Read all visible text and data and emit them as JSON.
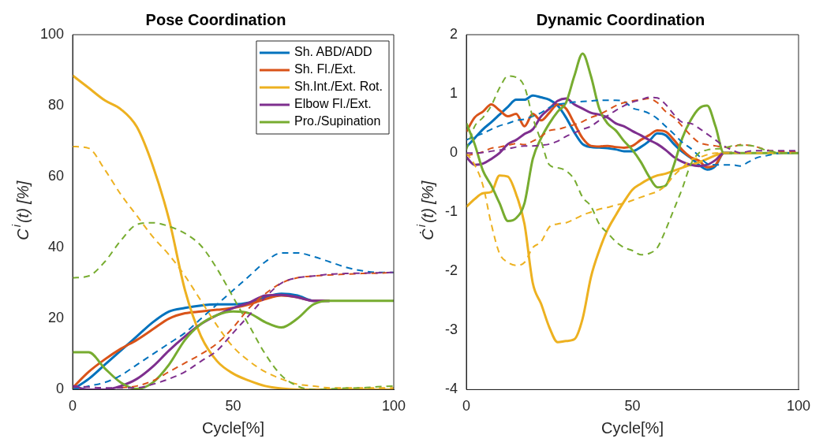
{
  "chart_data": [
    {
      "type": "line",
      "title": "Pose Coordination",
      "xlabel": "Cycle[%]",
      "ylabel": "C$^{i}$(t) [%]",
      "x": [
        0,
        5,
        10,
        15,
        20,
        25,
        30,
        35,
        40,
        45,
        50,
        55,
        60,
        65,
        70,
        75,
        80,
        85,
        90,
        95,
        100
      ],
      "xlim": [
        0,
        100
      ],
      "xticks": [
        0,
        50,
        100
      ],
      "ylim": [
        0,
        100
      ],
      "yticks": [
        0,
        20,
        40,
        60,
        80,
        100
      ],
      "grid": false,
      "legend": "top right",
      "series": [
        {
          "name": "Sh. ABD/ADD",
          "color": "#0072bd",
          "line_style": "solid",
          "values": [
            0,
            3,
            7,
            11,
            15,
            19,
            22,
            23,
            23.7,
            24,
            24,
            24.5,
            26,
            27,
            26.5,
            25,
            25,
            null,
            null,
            null,
            null
          ]
        },
        {
          "name": "Sh. Fl./Ext.",
          "color": "#d95319",
          "line_style": "solid",
          "values": [
            0.5,
            5,
            8.5,
            11.5,
            14,
            17,
            20,
            21.5,
            22,
            22.5,
            23,
            24,
            25.5,
            26.5,
            26,
            25,
            25,
            null,
            null,
            null,
            null
          ]
        },
        {
          "name": "Sh.Int./Ext. Rot.",
          "color": "#edb120",
          "line_style": "solid",
          "values": [
            88.5,
            85,
            81.5,
            79,
            74,
            63,
            48,
            28,
            15,
            8,
            4.5,
            2.5,
            1,
            0.3,
            0,
            0,
            0,
            0,
            0,
            0,
            0
          ]
        },
        {
          "name": "Elbow Fl./Ext.",
          "color": "#7e2f8e",
          "line_style": "solid",
          "values": [
            1,
            0,
            0,
            1,
            3,
            6.5,
            11,
            15,
            18.5,
            21,
            23,
            24.5,
            26.5,
            26.7,
            26,
            25,
            25,
            null,
            null,
            null,
            null
          ]
        },
        {
          "name": "Pro./Supination",
          "color": "#77ac30",
          "line_style": "solid",
          "values": [
            10.5,
            10.5,
            6,
            2,
            0.2,
            2,
            7,
            14,
            18.5,
            21,
            22,
            21.5,
            19,
            17.5,
            20,
            24,
            25,
            25,
            25,
            25,
            25
          ]
        },
        {
          "color": "#0072bd",
          "line_style": "dashed",
          "values": [
            0,
            1,
            2,
            4,
            7,
            10,
            13,
            16,
            20,
            24,
            28,
            32,
            36,
            38.5,
            38.5,
            37.5,
            36,
            34.5,
            33.5,
            33,
            33
          ]
        },
        {
          "color": "#d95319",
          "line_style": "dashed",
          "values": [
            null,
            null,
            null,
            0.5,
            1,
            2.5,
            5,
            7.5,
            10,
            13,
            17.5,
            23,
            27,
            30,
            31.5,
            32,
            32.3,
            32.5,
            32.7,
            32.8,
            33
          ]
        },
        {
          "color": "#edb120",
          "line_style": "dashed",
          "values": [
            68.5,
            68,
            62,
            55,
            49,
            43,
            38,
            32,
            25,
            18,
            12,
            8,
            5,
            3,
            1.5,
            1,
            0.5,
            0.5,
            0.5,
            0.5,
            0.5
          ]
        },
        {
          "color": "#7e2f8e",
          "line_style": "dashed",
          "values": [
            1,
            0.7,
            0.5,
            0.5,
            0.5,
            1.5,
            3,
            5,
            8,
            11,
            16,
            21,
            26,
            30,
            31.5,
            32,
            32.5,
            32.7,
            32.8,
            32.9,
            33
          ]
        },
        {
          "color": "#77ac30",
          "line_style": "dashed",
          "values": [
            31.5,
            32,
            36,
            42,
            46.5,
            47,
            46,
            44,
            40.5,
            34,
            26,
            18,
            10,
            4,
            1,
            0,
            0.2,
            0.4,
            0.5,
            0.8,
            1
          ]
        }
      ]
    },
    {
      "type": "line",
      "title": "Dynamic Coordination",
      "xlabel": "Cycle[%]",
      "ylabel": "Ċ$^{i}$(t) [%]",
      "x": [
        0,
        2.5,
        5,
        7.5,
        10,
        12.5,
        15,
        17.5,
        20,
        22.5,
        25,
        27.5,
        30,
        32.5,
        35,
        37.5,
        40,
        42.5,
        45,
        47.5,
        50,
        52.5,
        55,
        57.5,
        60,
        62.5,
        65,
        67.5,
        70,
        72.5,
        75,
        77.5,
        80,
        82.5,
        85,
        87.5,
        90,
        92.5,
        95,
        97.5,
        100
      ],
      "xlim": [
        0,
        100
      ],
      "xticks": [
        0,
        50,
        100
      ],
      "ylim": [
        -4,
        2
      ],
      "yticks": [
        -4,
        -3,
        -2,
        -1,
        0,
        1,
        2
      ],
      "grid": false,
      "series": [
        {
          "color": "#0072bd",
          "line_style": "solid",
          "values": [
            0.1,
            0.25,
            0.4,
            0.52,
            0.65,
            0.78,
            0.9,
            0.9,
            0.97,
            0.94,
            0.9,
            0.8,
            0.6,
            0.35,
            0.15,
            0.1,
            0.09,
            0.08,
            0.06,
            0.03,
            0.03,
            0.1,
            0.2,
            0.33,
            0.3,
            0.15,
            0.02,
            -0.08,
            -0.2,
            -0.28,
            -0.22,
            0,
            0,
            null,
            null,
            null,
            null,
            null,
            null,
            null,
            null
          ]
        },
        {
          "color": "#d95319",
          "line_style": "solid",
          "values": [
            0.36,
            0.6,
            0.7,
            0.82,
            0.72,
            0.62,
            0.66,
            0.45,
            0.66,
            0.55,
            0.68,
            0.82,
            0.75,
            0.5,
            0.25,
            0.12,
            0.11,
            0.12,
            0.1,
            0.09,
            0.12,
            0.22,
            0.3,
            0.38,
            0.36,
            0.22,
            0.05,
            -0.07,
            -0.13,
            -0.24,
            -0.2,
            0,
            0,
            null,
            null,
            null,
            null,
            null,
            null,
            null,
            null
          ]
        },
        {
          "color": "#edb120",
          "line_style": "solid",
          "values": [
            -0.91,
            -0.78,
            -0.68,
            -0.66,
            -0.38,
            -0.4,
            -0.7,
            -1.2,
            -2.2,
            -2.55,
            -2.95,
            -3.2,
            -3.18,
            -3.15,
            -2.8,
            -2.1,
            -1.65,
            -1.3,
            -1.05,
            -0.82,
            -0.62,
            -0.52,
            -0.44,
            -0.38,
            -0.35,
            -0.3,
            -0.25,
            -0.2,
            -0.16,
            -0.1,
            -0.04,
            0,
            0,
            null,
            null,
            null,
            null,
            null,
            null,
            null,
            null
          ]
        },
        {
          "color": "#7e2f8e",
          "line_style": "solid",
          "values": [
            -0.07,
            -0.2,
            -0.18,
            -0.1,
            0,
            0.15,
            0.22,
            0.32,
            0.4,
            0.62,
            0.75,
            0.88,
            0.92,
            0.82,
            0.75,
            0.68,
            0.65,
            0.6,
            0.5,
            0.45,
            0.37,
            0.3,
            0.22,
            0.15,
            0.05,
            -0.07,
            -0.15,
            -0.2,
            -0.22,
            -0.2,
            -0.12,
            0,
            0,
            null,
            null,
            null,
            null,
            null,
            null,
            null,
            null
          ]
        },
        {
          "color": "#77ac30",
          "line_style": "solid",
          "values": [
            0.5,
            0.15,
            -0.3,
            -0.55,
            -0.85,
            -1.15,
            -1.1,
            -0.85,
            -0.1,
            0.25,
            0.5,
            0.7,
            0.85,
            1.3,
            1.68,
            1.3,
            0.75,
            0.5,
            0.38,
            0.2,
            0.05,
            -0.15,
            -0.4,
            -0.58,
            -0.55,
            -0.2,
            0.25,
            0.55,
            0.75,
            0.8,
            0.45,
            0,
            0,
            0,
            0,
            0,
            0,
            0,
            0,
            0,
            0
          ]
        },
        {
          "color": "#0072bd",
          "line_style": "dashed",
          "values": [
            0.22,
            0.28,
            0.33,
            0.4,
            0.46,
            0.5,
            0.55,
            0.57,
            0.62,
            0.68,
            0.77,
            0.82,
            0.84,
            0.86,
            0.87,
            0.88,
            0.89,
            0.89,
            0.89,
            0.87,
            0.76,
            0.72,
            0.67,
            0.58,
            0.45,
            0.32,
            0.18,
            0.08,
            -0.05,
            -0.18,
            -0.2,
            -0.2,
            -0.2,
            -0.22,
            -0.15,
            -0.08,
            -0.05,
            -0.02,
            0,
            0,
            0
          ]
        },
        {
          "color": "#d95319",
          "line_style": "dashed",
          "values": [
            -0.04,
            -0.02,
            0.02,
            0.08,
            0.1,
            0.13,
            0.16,
            0.14,
            0.2,
            0.28,
            0.38,
            0.4,
            0.44,
            0.48,
            0.53,
            0.6,
            0.65,
            0.72,
            0.8,
            0.85,
            0.88,
            0.9,
            0.92,
            0.85,
            0.7,
            0.6,
            0.45,
            0.3,
            0.18,
            0.14,
            0.12,
            0.1,
            0.1,
            0.14,
            0.13,
            0.1,
            0.06,
            0.03,
            0.03,
            0.02,
            0.02
          ]
        },
        {
          "color": "#edb120",
          "line_style": "dashed",
          "values": [
            0,
            -0.2,
            -0.55,
            -1.2,
            -1.7,
            -1.85,
            -1.9,
            -1.85,
            -1.6,
            -1.5,
            -1.25,
            -1.2,
            -1.18,
            -1.12,
            -1.05,
            -1,
            -0.95,
            -0.92,
            -0.88,
            -0.85,
            -0.8,
            -0.75,
            -0.7,
            -0.65,
            -0.55,
            -0.38,
            -0.25,
            -0.12,
            -0.08,
            -0.03,
            0,
            0,
            0,
            0,
            0,
            0,
            0,
            0,
            0,
            0,
            0
          ]
        },
        {
          "color": "#7e2f8e",
          "line_style": "dashed",
          "values": [
            0,
            0,
            0.01,
            0.03,
            0.05,
            0.07,
            0.1,
            0.12,
            0.12,
            0.13,
            0.15,
            0.2,
            0.28,
            0.34,
            0.4,
            0.45,
            0.55,
            0.63,
            0.72,
            0.8,
            0.86,
            0.9,
            0.94,
            0.93,
            0.82,
            0.65,
            0.52,
            0.5,
            0.42,
            0.32,
            0.22,
            0.12,
            0.05,
            0,
            0.03,
            0.04,
            0.04,
            0.04,
            0.04,
            0.04,
            0.04
          ]
        },
        {
          "color": "#77ac30",
          "line_style": "dashed",
          "values": [
            0.05,
            0.45,
            0.6,
            0.8,
            1.1,
            1.3,
            1.28,
            1.12,
            0.6,
            0.2,
            -0.2,
            -0.25,
            -0.3,
            -0.45,
            -0.75,
            -0.9,
            -1.2,
            -1.35,
            -1.5,
            -1.6,
            -1.65,
            -1.72,
            -1.7,
            -1.6,
            -1.3,
            -0.95,
            -0.6,
            -0.2,
            0,
            0.05,
            0.07,
            0.08,
            0.12,
            0.13,
            0.13,
            0.1,
            0.05,
            0.02,
            0,
            0,
            0
          ]
        }
      ]
    }
  ]
}
